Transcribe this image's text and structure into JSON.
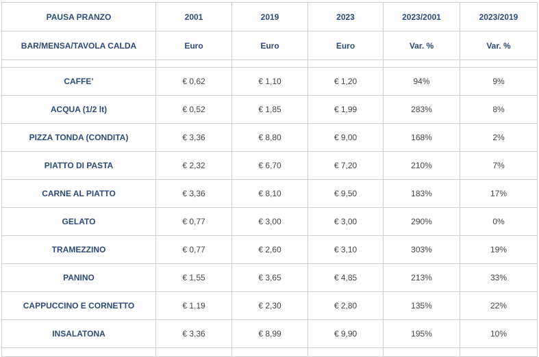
{
  "header": {
    "row1": [
      "PAUSA PRANZO",
      "2001",
      "2019",
      "2023",
      "2023/2001",
      "2023/2019"
    ],
    "row2": [
      "BAR/MENSA/TAVOLA CALDA",
      "Euro",
      "Euro",
      "Euro",
      "Var. %",
      "Var. %"
    ]
  },
  "rows": [
    {
      "item": "CAFFE’",
      "p2001": "€ 0,62",
      "p2019": "€ 1,10",
      "p2023": "€ 1,20",
      "var01": "94%",
      "var19": "9%"
    },
    {
      "item": "ACQUA (1/2 lt)",
      "p2001": "€ 0,52",
      "p2019": "€ 1,85",
      "p2023": "€ 1,99",
      "var01": "283%",
      "var19": "8%"
    },
    {
      "item": "PIZZA TONDA (CONDITA)",
      "p2001": "€ 3,36",
      "p2019": "€ 8,80",
      "p2023": "€ 9,00",
      "var01": "168%",
      "var19": "2%"
    },
    {
      "item": "PIATTO DI PASTA",
      "p2001": "€ 2,32",
      "p2019": "€ 6,70",
      "p2023": "€ 7,20",
      "var01": "210%",
      "var19": "7%"
    },
    {
      "item": "CARNE AL PIATTO",
      "p2001": "€ 3,36",
      "p2019": "€ 8,10",
      "p2023": "€ 9,50",
      "var01": "183%",
      "var19": "17%"
    },
    {
      "item": "GELATO",
      "p2001": "€ 0,77",
      "p2019": "€ 3,00",
      "p2023": "€ 3,00",
      "var01": "290%",
      "var19": "0%"
    },
    {
      "item": "TRAMEZZINO",
      "p2001": "€ 0,77",
      "p2019": "€ 2,60",
      "p2023": "€ 3,10",
      "var01": "303%",
      "var19": "19%"
    },
    {
      "item": "PANINO",
      "p2001": "€ 1,55",
      "p2019": "€ 3,65",
      "p2023": "€ 4,85",
      "var01": "213%",
      "var19": "33%"
    },
    {
      "item": "CAPPUCCINO E CORNETTO",
      "p2001": "€ 1,19",
      "p2019": "€ 2,30",
      "p2023": "€ 2,80",
      "var01": "135%",
      "var19": "22%"
    },
    {
      "item": "INSALATONA",
      "p2001": "€ 3,36",
      "p2019": "€ 8,99",
      "p2023": "€ 9,90",
      "var01": "195%",
      "var19": "10%"
    }
  ]
}
